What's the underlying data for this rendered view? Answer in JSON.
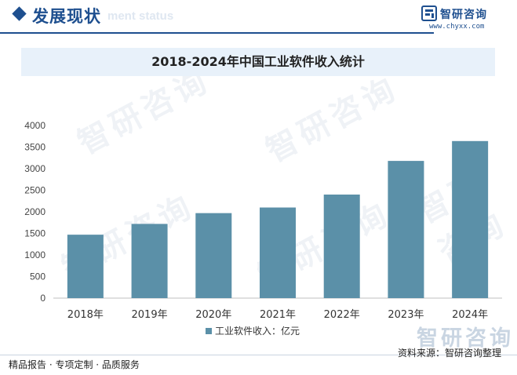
{
  "header": {
    "title": "发展现状",
    "subtitle": "ment status"
  },
  "brand": {
    "name": "智研咨询",
    "url": "www.chyxx.com"
  },
  "watermark": {
    "text": "智研咨询"
  },
  "footer": {
    "left": "精品报告 · 专项定制 · 品质服务",
    "right": "资料来源：智研咨询整理"
  },
  "colors": {
    "accent": "#1e4f8f",
    "bar": "#5b90a8",
    "title_band": "#e8f1fa"
  },
  "chart_data": {
    "type": "bar",
    "title": "2018-2024年中国工业软件收入统计",
    "categories": [
      "2018年",
      "2019年",
      "2020年",
      "2021年",
      "2022年",
      "2023年",
      "2024年"
    ],
    "series": [
      {
        "name": "工业软件收入：亿元",
        "values": [
          1470,
          1720,
          1970,
          2100,
          2400,
          3180,
          3640
        ]
      }
    ],
    "ylim": [
      0,
      4000
    ],
    "yticks": [
      0,
      500,
      1000,
      1500,
      2000,
      2500,
      3000,
      3500,
      4000
    ],
    "grid": false,
    "legend": "bottom"
  }
}
